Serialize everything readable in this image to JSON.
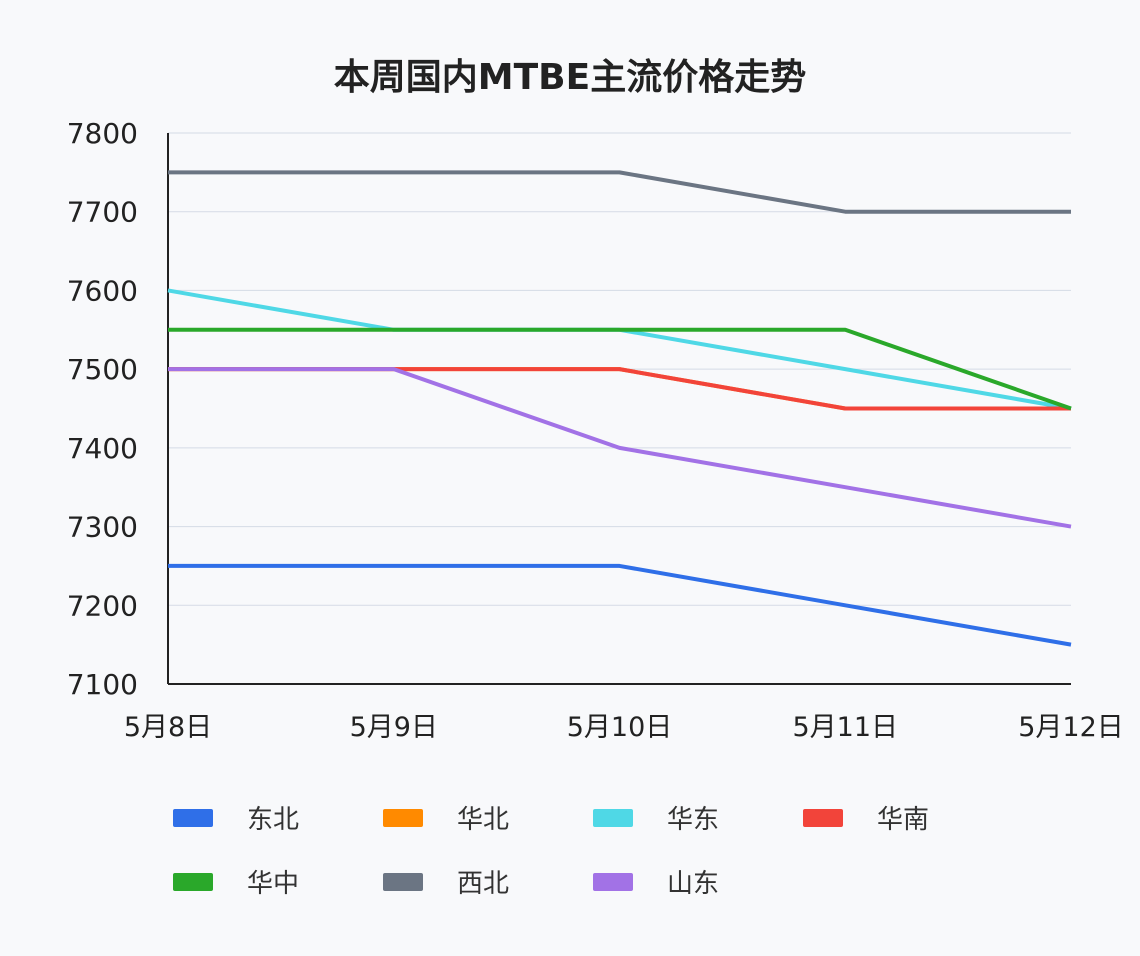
{
  "chart_data": {
    "type": "line",
    "title": "本周国内MTBE主流价格走势",
    "xlabel": "",
    "ylabel": "",
    "categories": [
      "5月8日",
      "5月9日",
      "5月10日",
      "5月11日",
      "5月12日"
    ],
    "ylim": [
      7100,
      7800
    ],
    "yticks": [
      7100,
      7200,
      7300,
      7400,
      7500,
      7600,
      7700,
      7800
    ],
    "grid": true,
    "legend_position": "bottom",
    "series": [
      {
        "name": "东北",
        "color": "#2f6fe8",
        "values": [
          7250,
          7250,
          7250,
          7200,
          7150
        ]
      },
      {
        "name": "华北",
        "color": "#ff8a00",
        "values": [
          7500,
          7500,
          7500,
          7450,
          7450
        ]
      },
      {
        "name": "华东",
        "color": "#4fd8e6",
        "values": [
          7600,
          7550,
          7550,
          7500,
          7450
        ]
      },
      {
        "name": "华南",
        "color": "#f2443a",
        "values": [
          7500,
          7500,
          7500,
          7450,
          7450
        ]
      },
      {
        "name": "华中",
        "color": "#2aa82a",
        "values": [
          7550,
          7550,
          7550,
          7550,
          7450
        ]
      },
      {
        "name": "西北",
        "color": "#6b7583",
        "values": [
          7750,
          7750,
          7750,
          7700,
          7700
        ]
      },
      {
        "name": "山东",
        "color": "#a272e6",
        "values": [
          7500,
          7500,
          7400,
          7350,
          7300
        ]
      }
    ]
  }
}
